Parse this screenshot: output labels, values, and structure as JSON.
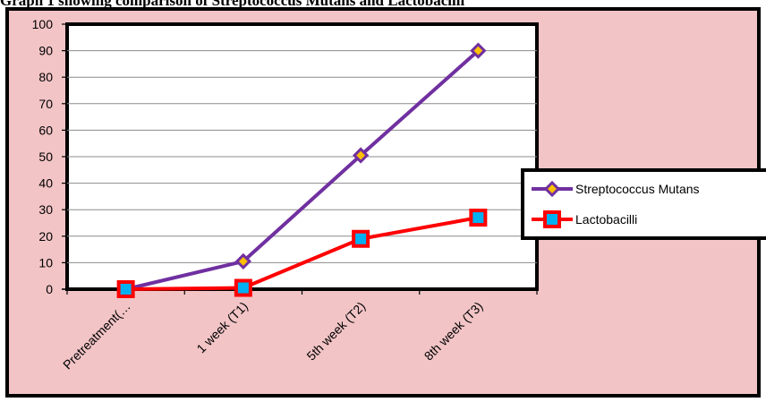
{
  "figure": {
    "caption": "Graph 1 showing comparison of Streptococcus Mutans and Lactobacilli",
    "colors": {
      "chart_background": "#f2c4c6",
      "plot_background": "#ffffff",
      "border": "#000000"
    }
  },
  "chart_data": {
    "type": "line",
    "categories": [
      "Pretreatment(…",
      "1 week (T1)",
      "5th week (T2)",
      "8th week (T3)"
    ],
    "series": [
      {
        "name": "Streptococcus Mutans",
        "values": [
          0,
          10.5,
          50.5,
          90
        ],
        "color": "#7030a0",
        "marker": "diamond",
        "marker_fill": "#ffc000"
      },
      {
        "name": "Lactobacilli",
        "values": [
          0,
          0.5,
          19,
          27
        ],
        "color": "#ff0000",
        "marker": "square",
        "marker_fill": "#00b0f0"
      }
    ],
    "ylim": [
      0,
      100
    ],
    "yticks": [
      0,
      10,
      20,
      30,
      40,
      50,
      60,
      70,
      80,
      90,
      100
    ],
    "grid": true,
    "legend_position": "right"
  }
}
